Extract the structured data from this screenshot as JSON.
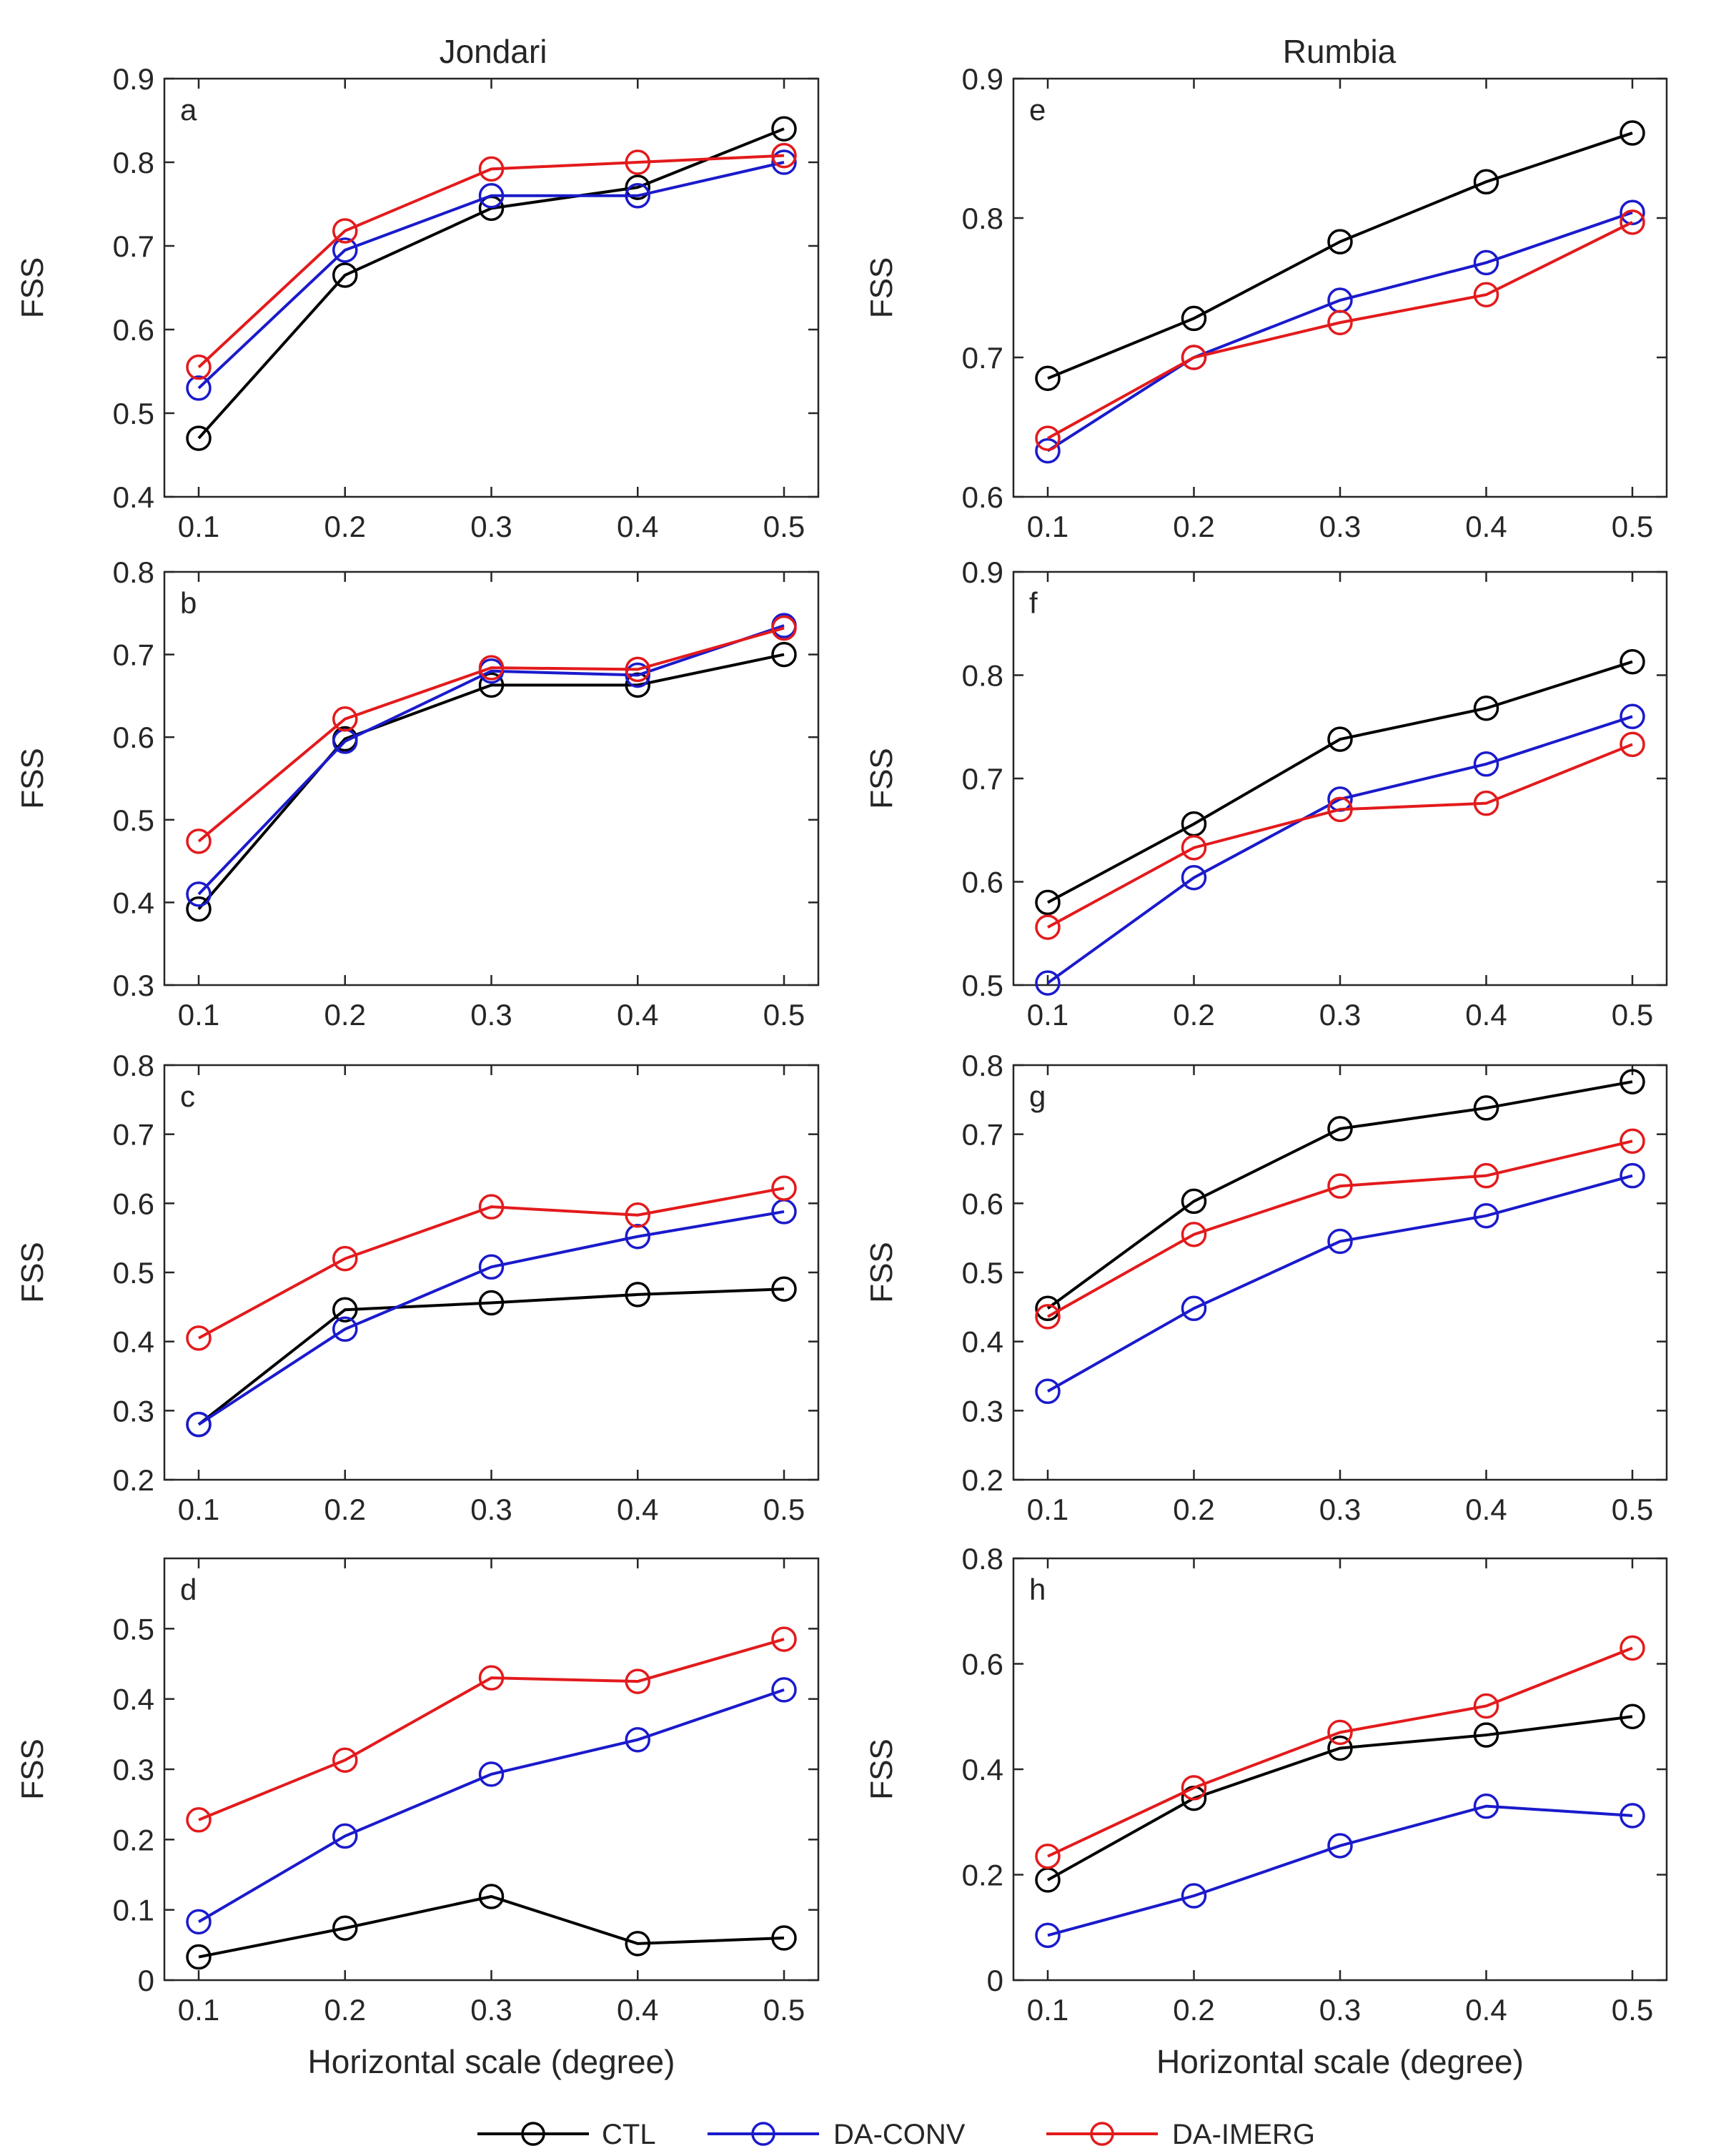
{
  "figure": {
    "column_titles": [
      "Jondari",
      "Rumbia"
    ],
    "series_styles": [
      {
        "name": "CTL",
        "color": "#000000"
      },
      {
        "name": "DA-CONV",
        "color": "#1a1acc"
      },
      {
        "name": "DA-IMERG",
        "color": "#e31a1c"
      }
    ]
  },
  "chart_data": [
    {
      "panel": "a",
      "type": "line",
      "column_title": "Jondari",
      "ylabel": "FSS",
      "xlabel": "",
      "x": [
        0.1,
        0.2,
        0.3,
        0.4,
        0.5
      ],
      "xlim": [
        0.1,
        0.5
      ],
      "ylim": [
        0.4,
        0.9
      ],
      "yticks": [
        0.4,
        0.5,
        0.6,
        0.7,
        0.8,
        0.9
      ],
      "series": [
        {
          "name": "CTL",
          "values": [
            0.47,
            0.665,
            0.745,
            0.77,
            0.84
          ]
        },
        {
          "name": "DA-CONV",
          "values": [
            0.53,
            0.695,
            0.76,
            0.76,
            0.8
          ]
        },
        {
          "name": "DA-IMERG",
          "values": [
            0.555,
            0.718,
            0.792,
            0.8,
            0.808
          ]
        }
      ]
    },
    {
      "panel": "e",
      "type": "line",
      "column_title": "Rumbia",
      "ylabel": "FSS",
      "xlabel": "",
      "x": [
        0.1,
        0.2,
        0.3,
        0.4,
        0.5
      ],
      "xlim": [
        0.1,
        0.5
      ],
      "ylim": [
        0.6,
        0.9
      ],
      "yticks": [
        0.6,
        0.7,
        0.8,
        0.9
      ],
      "series": [
        {
          "name": "CTL",
          "values": [
            0.685,
            0.728,
            0.783,
            0.826,
            0.861
          ]
        },
        {
          "name": "DA-CONV",
          "values": [
            0.633,
            0.7,
            0.741,
            0.768,
            0.804
          ]
        },
        {
          "name": "DA-IMERG",
          "values": [
            0.642,
            0.7,
            0.725,
            0.745,
            0.797
          ]
        }
      ]
    },
    {
      "panel": "b",
      "type": "line",
      "ylabel": "FSS",
      "xlabel": "",
      "x": [
        0.1,
        0.2,
        0.3,
        0.4,
        0.5
      ],
      "xlim": [
        0.1,
        0.5
      ],
      "ylim": [
        0.3,
        0.8
      ],
      "yticks": [
        0.3,
        0.4,
        0.5,
        0.6,
        0.7,
        0.8
      ],
      "series": [
        {
          "name": "CTL",
          "values": [
            0.392,
            0.598,
            0.663,
            0.663,
            0.7
          ]
        },
        {
          "name": "DA-CONV",
          "values": [
            0.41,
            0.595,
            0.68,
            0.675,
            0.735
          ]
        },
        {
          "name": "DA-IMERG",
          "values": [
            0.474,
            0.622,
            0.684,
            0.682,
            0.732
          ]
        }
      ]
    },
    {
      "panel": "f",
      "type": "line",
      "ylabel": "FSS",
      "xlabel": "",
      "x": [
        0.1,
        0.2,
        0.3,
        0.4,
        0.5
      ],
      "xlim": [
        0.1,
        0.5
      ],
      "ylim": [
        0.5,
        0.9
      ],
      "yticks": [
        0.5,
        0.6,
        0.7,
        0.8,
        0.9
      ],
      "series": [
        {
          "name": "CTL",
          "values": [
            0.58,
            0.656,
            0.738,
            0.768,
            0.813
          ]
        },
        {
          "name": "DA-CONV",
          "values": [
            0.502,
            0.604,
            0.68,
            0.714,
            0.76
          ]
        },
        {
          "name": "DA-IMERG",
          "values": [
            0.556,
            0.633,
            0.67,
            0.676,
            0.733
          ]
        }
      ]
    },
    {
      "panel": "c",
      "type": "line",
      "ylabel": "FSS",
      "xlabel": "",
      "x": [
        0.1,
        0.2,
        0.3,
        0.4,
        0.5
      ],
      "xlim": [
        0.1,
        0.5
      ],
      "ylim": [
        0.2,
        0.8
      ],
      "yticks": [
        0.2,
        0.3,
        0.4,
        0.5,
        0.6,
        0.7,
        0.8
      ],
      "series": [
        {
          "name": "CTL",
          "values": [
            0.28,
            0.446,
            0.456,
            0.468,
            0.476
          ]
        },
        {
          "name": "DA-CONV",
          "values": [
            0.28,
            0.418,
            0.508,
            0.552,
            0.588
          ]
        },
        {
          "name": "DA-IMERG",
          "values": [
            0.405,
            0.52,
            0.595,
            0.583,
            0.622
          ]
        }
      ]
    },
    {
      "panel": "g",
      "type": "line",
      "ylabel": "FSS",
      "xlabel": "",
      "x": [
        0.1,
        0.2,
        0.3,
        0.4,
        0.5
      ],
      "xlim": [
        0.1,
        0.5
      ],
      "ylim": [
        0.2,
        0.8
      ],
      "yticks": [
        0.2,
        0.3,
        0.4,
        0.5,
        0.6,
        0.7,
        0.8
      ],
      "series": [
        {
          "name": "CTL",
          "values": [
            0.448,
            0.603,
            0.708,
            0.738,
            0.776
          ]
        },
        {
          "name": "DA-CONV",
          "values": [
            0.328,
            0.448,
            0.545,
            0.582,
            0.64
          ]
        },
        {
          "name": "DA-IMERG",
          "values": [
            0.436,
            0.555,
            0.625,
            0.64,
            0.69
          ]
        }
      ]
    },
    {
      "panel": "d",
      "type": "line",
      "ylabel": "FSS",
      "xlabel": "Horizontal scale (degree)",
      "x": [
        0.1,
        0.2,
        0.3,
        0.4,
        0.5
      ],
      "xlim": [
        0.1,
        0.5
      ],
      "ylim": [
        0,
        0.6
      ],
      "yticks": [
        0,
        0.1,
        0.2,
        0.3,
        0.4,
        0.5
      ],
      "series": [
        {
          "name": "CTL",
          "values": [
            0.033,
            0.074,
            0.119,
            0.052,
            0.06
          ]
        },
        {
          "name": "DA-CONV",
          "values": [
            0.083,
            0.205,
            0.293,
            0.342,
            0.413
          ]
        },
        {
          "name": "DA-IMERG",
          "values": [
            0.228,
            0.313,
            0.43,
            0.425,
            0.485
          ]
        }
      ]
    },
    {
      "panel": "h",
      "type": "line",
      "ylabel": "FSS",
      "xlabel": "Horizontal scale (degree)",
      "x": [
        0.1,
        0.2,
        0.3,
        0.4,
        0.5
      ],
      "xlim": [
        0.1,
        0.5
      ],
      "ylim": [
        0,
        0.8
      ],
      "yticks": [
        0,
        0.2,
        0.4,
        0.6,
        0.8
      ],
      "series": [
        {
          "name": "CTL",
          "values": [
            0.19,
            0.345,
            0.44,
            0.465,
            0.5
          ]
        },
        {
          "name": "DA-CONV",
          "values": [
            0.085,
            0.16,
            0.255,
            0.33,
            0.312
          ]
        },
        {
          "name": "DA-IMERG",
          "values": [
            0.235,
            0.365,
            0.47,
            0.52,
            0.63
          ]
        }
      ]
    }
  ],
  "legend": {
    "entries": [
      "CTL",
      "DA-CONV",
      "DA-IMERG"
    ]
  }
}
